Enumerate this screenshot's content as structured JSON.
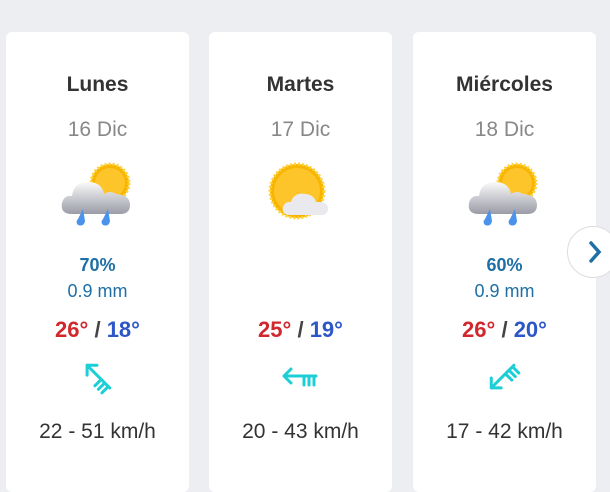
{
  "days": [
    {
      "name": "Lunes",
      "date": "16 Dic",
      "icon": "rain-cloud-sun-icon",
      "precip_pct": "70%",
      "precip_mm": "0.9 mm",
      "max": "26°",
      "min": "18°",
      "wind_dir_rotation_deg": 45,
      "wind": "22 - 51 km/h"
    },
    {
      "name": "Martes",
      "date": "17 Dic",
      "icon": "sun-cloud-icon",
      "precip_pct": "",
      "precip_mm": "",
      "max": "25°",
      "min": "19°",
      "wind_dir_rotation_deg": 0,
      "wind": "20 - 43 km/h"
    },
    {
      "name": "Miércoles",
      "date": "18 Dic",
      "icon": "rain-cloud-sun-icon",
      "precip_pct": "60%",
      "precip_mm": "0.9 mm",
      "max": "26°",
      "min": "20°",
      "wind_dir_rotation_deg": -45,
      "wind": "17 - 42 km/h"
    }
  ],
  "separator": "/",
  "next_icon": "chevron-right-icon",
  "colors": {
    "max": "#d0282c",
    "min": "#2d56c7",
    "precip": "#1e6fa6",
    "wind_arrow": "#1ccfd6"
  }
}
